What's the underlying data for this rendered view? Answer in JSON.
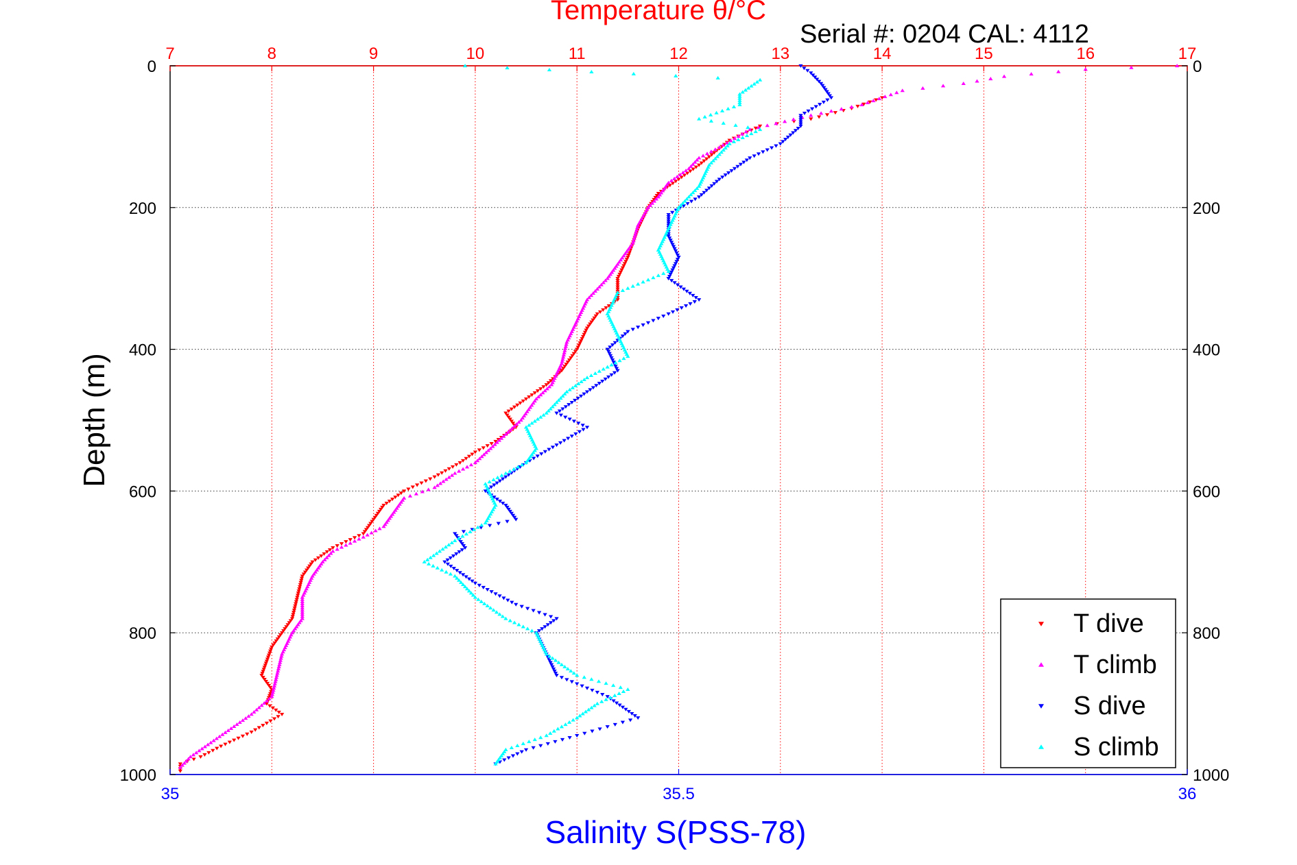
{
  "chart_data": {
    "type": "scatter",
    "title": "Temperature θ/°C",
    "subtitle": "Serial #: 0204  CAL: 4112",
    "ylabel": "Depth (m)",
    "xlabel_bottom": "Salinity S(PSS-78)",
    "y_axis": {
      "range": [
        0,
        1000
      ],
      "reversed": true,
      "ticks": [
        0,
        200,
        400,
        600,
        800,
        1000
      ]
    },
    "x_top": {
      "quantity": "Temperature",
      "range": [
        7,
        17
      ],
      "ticks": [
        7,
        8,
        9,
        10,
        11,
        12,
        13,
        14,
        15,
        16,
        17
      ],
      "color": "#ff0000"
    },
    "x_bottom": {
      "quantity": "Salinity",
      "range": [
        35,
        36
      ],
      "ticks": [
        35,
        35.5,
        36
      ],
      "color": "#0000ff"
    },
    "grid": {
      "vertical": "red dotted at temperature ticks",
      "horizontal": "dotted at depth ticks"
    },
    "legend": {
      "placement": "bottom-right",
      "entries": [
        {
          "label": "T dive",
          "color": "#ff0000",
          "marker": "down-triangle"
        },
        {
          "label": "T climb",
          "color": "#ff00ff",
          "marker": "up-triangle"
        },
        {
          "label": "S dive",
          "color": "#0000ff",
          "marker": "down-triangle"
        },
        {
          "label": "S climb",
          "color": "#00ffff",
          "marker": "up-triangle"
        }
      ]
    },
    "series": [
      {
        "name": "T dive",
        "axis": "temperature",
        "color": "#ff0000",
        "marker": "down-triangle",
        "points": [
          [
            14.0,
            45
          ],
          [
            13.7,
            60
          ],
          [
            13.3,
            75
          ],
          [
            12.8,
            85
          ],
          [
            12.5,
            105
          ],
          [
            12.2,
            140
          ],
          [
            12.0,
            160
          ],
          [
            11.8,
            180
          ],
          [
            11.7,
            200
          ],
          [
            11.6,
            230
          ],
          [
            11.5,
            270
          ],
          [
            11.4,
            300
          ],
          [
            11.4,
            330
          ],
          [
            11.2,
            350
          ],
          [
            11.1,
            370
          ],
          [
            11.0,
            400
          ],
          [
            10.85,
            430
          ],
          [
            10.7,
            450
          ],
          [
            10.5,
            470
          ],
          [
            10.3,
            490
          ],
          [
            10.4,
            510
          ],
          [
            10.2,
            530
          ],
          [
            10.0,
            545
          ],
          [
            9.85,
            560
          ],
          [
            9.6,
            580
          ],
          [
            9.3,
            600
          ],
          [
            9.1,
            620
          ],
          [
            9.0,
            640
          ],
          [
            8.9,
            660
          ],
          [
            8.6,
            680
          ],
          [
            8.4,
            700
          ],
          [
            8.3,
            720
          ],
          [
            8.25,
            750
          ],
          [
            8.2,
            780
          ],
          [
            8.1,
            800
          ],
          [
            8.0,
            820
          ],
          [
            7.95,
            840
          ],
          [
            7.9,
            860
          ],
          [
            8.0,
            880
          ],
          [
            7.95,
            900
          ],
          [
            8.1,
            915
          ],
          [
            7.8,
            940
          ],
          [
            7.5,
            960
          ],
          [
            7.3,
            975
          ],
          [
            7.1,
            985
          ],
          [
            7.1,
            995
          ]
        ]
      },
      {
        "name": "T climb",
        "axis": "temperature",
        "color": "#ff00ff",
        "marker": "up-triangle",
        "points": [
          [
            16.9,
            0
          ],
          [
            16.0,
            5
          ],
          [
            15.2,
            15
          ],
          [
            14.8,
            25
          ],
          [
            14.2,
            35
          ],
          [
            13.8,
            55
          ],
          [
            13.3,
            70
          ],
          [
            12.7,
            90
          ],
          [
            12.4,
            115
          ],
          [
            12.2,
            130
          ],
          [
            12.1,
            145
          ],
          [
            11.9,
            165
          ],
          [
            11.8,
            185
          ],
          [
            11.7,
            200
          ],
          [
            11.6,
            225
          ],
          [
            11.55,
            250
          ],
          [
            11.4,
            280
          ],
          [
            11.3,
            300
          ],
          [
            11.1,
            330
          ],
          [
            11.0,
            360
          ],
          [
            10.9,
            390
          ],
          [
            10.85,
            420
          ],
          [
            10.75,
            450
          ],
          [
            10.6,
            470
          ],
          [
            10.45,
            500
          ],
          [
            10.3,
            520
          ],
          [
            10.15,
            540
          ],
          [
            10.0,
            560
          ],
          [
            9.8,
            575
          ],
          [
            9.6,
            595
          ],
          [
            9.3,
            610
          ],
          [
            9.2,
            630
          ],
          [
            9.1,
            650
          ],
          [
            8.9,
            665
          ],
          [
            8.6,
            685
          ],
          [
            8.5,
            700
          ],
          [
            8.4,
            720
          ],
          [
            8.3,
            750
          ],
          [
            8.3,
            780
          ],
          [
            8.2,
            800
          ],
          [
            8.1,
            830
          ],
          [
            8.05,
            860
          ],
          [
            8.0,
            890
          ],
          [
            7.8,
            915
          ],
          [
            7.6,
            935
          ],
          [
            7.4,
            955
          ],
          [
            7.2,
            975
          ],
          [
            7.1,
            990
          ]
        ]
      },
      {
        "name": "S dive",
        "axis": "salinity",
        "color": "#0000ff",
        "marker": "down-triangle",
        "points": [
          [
            35.62,
            0
          ],
          [
            35.63,
            10
          ],
          [
            35.64,
            25
          ],
          [
            35.65,
            45
          ],
          [
            35.62,
            70
          ],
          [
            35.62,
            85
          ],
          [
            35.6,
            110
          ],
          [
            35.57,
            130
          ],
          [
            35.54,
            160
          ],
          [
            35.52,
            185
          ],
          [
            35.49,
            210
          ],
          [
            35.49,
            240
          ],
          [
            35.5,
            270
          ],
          [
            35.49,
            300
          ],
          [
            35.52,
            330
          ],
          [
            35.49,
            350
          ],
          [
            35.45,
            375
          ],
          [
            35.43,
            400
          ],
          [
            35.44,
            430
          ],
          [
            35.41,
            460
          ],
          [
            35.38,
            490
          ],
          [
            35.41,
            510
          ],
          [
            35.38,
            535
          ],
          [
            35.35,
            560
          ],
          [
            35.33,
            580
          ],
          [
            35.31,
            600
          ],
          [
            35.33,
            620
          ],
          [
            35.34,
            640
          ],
          [
            35.28,
            660
          ],
          [
            35.29,
            680
          ],
          [
            35.27,
            700
          ],
          [
            35.3,
            730
          ],
          [
            35.34,
            760
          ],
          [
            35.38,
            780
          ],
          [
            35.36,
            800
          ],
          [
            35.37,
            830
          ],
          [
            35.38,
            860
          ],
          [
            35.43,
            890
          ],
          [
            35.46,
            920
          ],
          [
            35.4,
            945
          ],
          [
            35.35,
            965
          ],
          [
            35.32,
            985
          ]
        ]
      },
      {
        "name": "S climb",
        "axis": "salinity",
        "color": "#00ffff",
        "marker": "up-triangle",
        "points": [
          [
            35.29,
            0
          ],
          [
            35.58,
            20
          ],
          [
            35.56,
            40
          ],
          [
            35.56,
            55
          ],
          [
            35.52,
            75
          ],
          [
            35.58,
            90
          ],
          [
            35.55,
            110
          ],
          [
            35.53,
            140
          ],
          [
            35.52,
            170
          ],
          [
            35.5,
            200
          ],
          [
            35.49,
            230
          ],
          [
            35.48,
            260
          ],
          [
            35.49,
            290
          ],
          [
            35.44,
            320
          ],
          [
            35.43,
            350
          ],
          [
            35.44,
            380
          ],
          [
            35.45,
            410
          ],
          [
            35.41,
            440
          ],
          [
            35.39,
            460
          ],
          [
            35.37,
            490
          ],
          [
            35.35,
            510
          ],
          [
            35.36,
            540
          ],
          [
            35.35,
            560
          ],
          [
            35.31,
            590
          ],
          [
            35.32,
            620
          ],
          [
            35.31,
            645
          ],
          [
            35.28,
            670
          ],
          [
            35.25,
            700
          ],
          [
            35.28,
            720
          ],
          [
            35.3,
            750
          ],
          [
            35.33,
            780
          ],
          [
            35.36,
            800
          ],
          [
            35.37,
            830
          ],
          [
            35.4,
            860
          ],
          [
            35.45,
            880
          ],
          [
            35.42,
            900
          ],
          [
            35.4,
            920
          ],
          [
            35.37,
            945
          ],
          [
            35.33,
            965
          ],
          [
            35.32,
            985
          ]
        ]
      }
    ]
  }
}
